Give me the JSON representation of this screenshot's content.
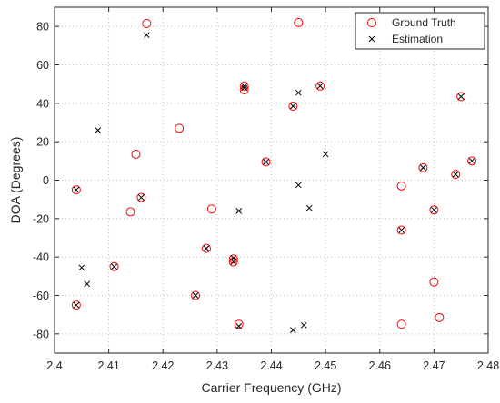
{
  "chart_data": {
    "type": "scatter",
    "title": "",
    "xlabel": "Carrier Frequency (GHz)",
    "ylabel": "DOA (Degrees)",
    "xlim": [
      2.4,
      2.48
    ],
    "ylim": [
      -90,
      90
    ],
    "xticks": [
      2.4,
      2.41,
      2.42,
      2.43,
      2.44,
      2.45,
      2.46,
      2.47,
      2.48
    ],
    "yticks": [
      -80,
      -60,
      -40,
      -20,
      0,
      20,
      40,
      60,
      80
    ],
    "xtick_labels": [
      "2.4",
      "2.41",
      "2.42",
      "2.43",
      "2.44",
      "2.45",
      "2.46",
      "2.47",
      "2.48"
    ],
    "ytick_labels": [
      "-80",
      "-60",
      "-40",
      "-20",
      "0",
      "20",
      "40",
      "60",
      "80"
    ],
    "grid": true,
    "legend_position": "top-right",
    "series": [
      {
        "name": "Ground Truth",
        "marker": "circle",
        "color": "#ff0000",
        "points": [
          [
            2.404,
            -5
          ],
          [
            2.404,
            -65
          ],
          [
            2.411,
            -45
          ],
          [
            2.414,
            -16.5
          ],
          [
            2.415,
            13.5
          ],
          [
            2.416,
            -9
          ],
          [
            2.417,
            81.5
          ],
          [
            2.423,
            27
          ],
          [
            2.426,
            -60
          ],
          [
            2.428,
            -35.5
          ],
          [
            2.429,
            -15
          ],
          [
            2.433,
            -42.5
          ],
          [
            2.433,
            -41
          ],
          [
            2.434,
            -75
          ],
          [
            2.435,
            47
          ],
          [
            2.435,
            49
          ],
          [
            2.439,
            9.5
          ],
          [
            2.444,
            38.5
          ],
          [
            2.445,
            82
          ],
          [
            2.449,
            49
          ],
          [
            2.464,
            -3
          ],
          [
            2.464,
            -26
          ],
          [
            2.464,
            -75
          ],
          [
            2.468,
            6.5
          ],
          [
            2.47,
            -15.5
          ],
          [
            2.47,
            -53
          ],
          [
            2.471,
            -71.5
          ],
          [
            2.474,
            3
          ],
          [
            2.475,
            43.5
          ],
          [
            2.477,
            10
          ]
        ]
      },
      {
        "name": "Estimation",
        "marker": "x",
        "color": "#000000",
        "points": [
          [
            2.404,
            -5
          ],
          [
            2.404,
            -65
          ],
          [
            2.405,
            -45.5
          ],
          [
            2.406,
            -54
          ],
          [
            2.408,
            26
          ],
          [
            2.411,
            -45
          ],
          [
            2.416,
            -9
          ],
          [
            2.417,
            75.5
          ],
          [
            2.426,
            -60
          ],
          [
            2.428,
            -35.5
          ],
          [
            2.433,
            -42.5
          ],
          [
            2.433,
            -40.5
          ],
          [
            2.434,
            -16
          ],
          [
            2.434,
            -76
          ],
          [
            2.435,
            48
          ],
          [
            2.435,
            49
          ],
          [
            2.439,
            9.5
          ],
          [
            2.444,
            -78
          ],
          [
            2.444,
            38.5
          ],
          [
            2.445,
            45.5
          ],
          [
            2.445,
            -2.5
          ],
          [
            2.446,
            -75.5
          ],
          [
            2.447,
            -14.5
          ],
          [
            2.449,
            49
          ],
          [
            2.45,
            13.5
          ],
          [
            2.464,
            -26
          ],
          [
            2.468,
            6.5
          ],
          [
            2.47,
            -15.5
          ],
          [
            2.474,
            3
          ],
          [
            2.475,
            43.5
          ],
          [
            2.477,
            10
          ]
        ]
      }
    ]
  }
}
